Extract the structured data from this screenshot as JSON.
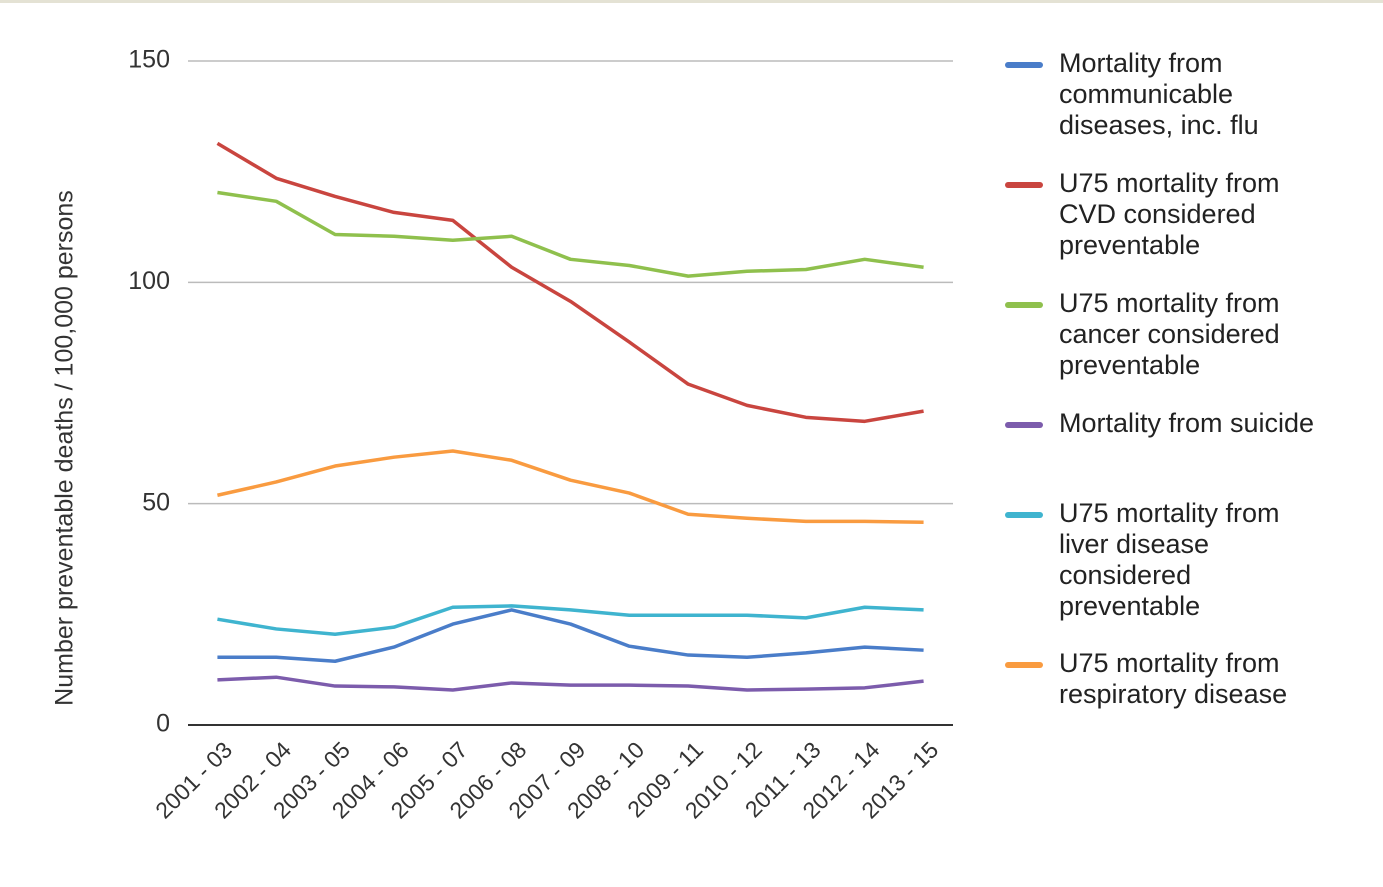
{
  "chart_data": {
    "type": "line",
    "ylabel": "Number preventable deaths / 100,000 persons",
    "categories": [
      "2001 - 03",
      "2002 - 04",
      "2003 - 05",
      "2004 - 06",
      "2005 - 07",
      "2006 - 08",
      "2007 - 09",
      "2008 - 10",
      "2009 - 11",
      "2010 - 12",
      "2011 - 13",
      "2012 - 14",
      "2013 - 15"
    ],
    "ylim": [
      0,
      150
    ],
    "yticks": [
      0,
      50,
      100,
      150
    ],
    "grid": true,
    "series": [
      {
        "name": "Mortality from communicable diseases, inc. flu",
        "color": "#4a7dc9",
        "values": [
          15.3,
          15.3,
          14.4,
          17.6,
          22.8,
          26,
          22.8,
          17.8,
          15.8,
          15.3,
          16.3,
          17.6,
          16.9
        ]
      },
      {
        "name": "U75 mortality from CVD considered preventable",
        "color": "#c9453f",
        "values": [
          131.4,
          123.5,
          119.4,
          115.8,
          114,
          103.4,
          95.7,
          86.5,
          77,
          72.2,
          69.5,
          68.6,
          70.9
        ]
      },
      {
        "name": "U75 mortality from cancer considered preventable",
        "color": "#8fc04d",
        "values": [
          120.3,
          118.3,
          110.8,
          110.4,
          109.5,
          110.4,
          105.2,
          103.8,
          101.4,
          102.5,
          102.9,
          105.2,
          103.4
        ]
      },
      {
        "name": "Mortality from suicide",
        "color": "#7c5cac",
        "values": [
          10.2,
          10.8,
          8.8,
          8.6,
          7.9,
          9.5,
          9,
          9,
          8.8,
          7.9,
          8.1,
          8.4,
          9.9
        ]
      },
      {
        "name": "U75 mortality from liver disease considered preventable",
        "color": "#3fb4cf",
        "values": [
          23.9,
          21.7,
          20.5,
          22.1,
          26.6,
          26.9,
          26,
          24.8,
          24.8,
          24.8,
          24.2,
          26.6,
          26
        ]
      },
      {
        "name": "U75 mortality from respiratory disease",
        "color": "#f99b40",
        "values": [
          51.9,
          54.9,
          58.5,
          60.5,
          61.9,
          59.8,
          55.3,
          52.4,
          47.6,
          46.7,
          46,
          46,
          45.8
        ]
      }
    ]
  }
}
